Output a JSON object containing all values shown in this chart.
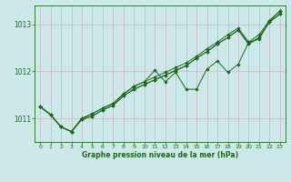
{
  "xlabel": "Graphe pression niveau de la mer (hPa)",
  "background_color": "#cce8e8",
  "grid_color_major": "#b8d4d4",
  "grid_color_minor": "#dce8e8",
  "line_color": "#1a6b1a",
  "xlim": [
    -0.5,
    23.5
  ],
  "ylim": [
    1010.5,
    1013.4
  ],
  "yticks": [
    1011,
    1012,
    1013
  ],
  "xticks": [
    0,
    1,
    2,
    3,
    4,
    5,
    6,
    7,
    8,
    9,
    10,
    11,
    12,
    13,
    14,
    15,
    16,
    17,
    18,
    19,
    20,
    21,
    22,
    23
  ],
  "series": [
    [
      1011.25,
      1011.08,
      1010.82,
      1010.72,
      1011.0,
      1011.1,
      1011.22,
      1011.32,
      1011.52,
      1011.68,
      1011.78,
      1011.88,
      1011.98,
      1012.08,
      1012.18,
      1012.32,
      1012.48,
      1012.62,
      1012.78,
      1012.92,
      1012.62,
      1012.78,
      1013.08,
      1013.28
    ],
    [
      1011.25,
      1011.08,
      1010.82,
      1010.72,
      1011.0,
      1011.1,
      1011.22,
      1011.32,
      1011.52,
      1011.68,
      1011.78,
      1012.02,
      1011.78,
      1011.98,
      1011.62,
      1011.62,
      1012.05,
      1012.22,
      1011.98,
      1012.15,
      1012.62,
      1012.68,
      1013.08,
      1013.28
    ],
    [
      1011.25,
      1011.08,
      1010.82,
      1010.72,
      1010.98,
      1011.05,
      1011.18,
      1011.28,
      1011.48,
      1011.62,
      1011.72,
      1011.82,
      1011.92,
      1012.02,
      1012.12,
      1012.28,
      1012.42,
      1012.58,
      1012.72,
      1012.88,
      1012.58,
      1012.72,
      1013.05,
      1013.22
    ],
    [
      1011.25,
      1011.08,
      1010.82,
      1010.72,
      1010.98,
      1011.05,
      1011.18,
      1011.28,
      1011.48,
      1011.62,
      1011.72,
      1011.82,
      1011.92,
      1012.02,
      1012.12,
      1012.28,
      1012.42,
      1012.58,
      1012.72,
      1012.88,
      1012.58,
      1012.72,
      1013.05,
      1013.22
    ]
  ]
}
